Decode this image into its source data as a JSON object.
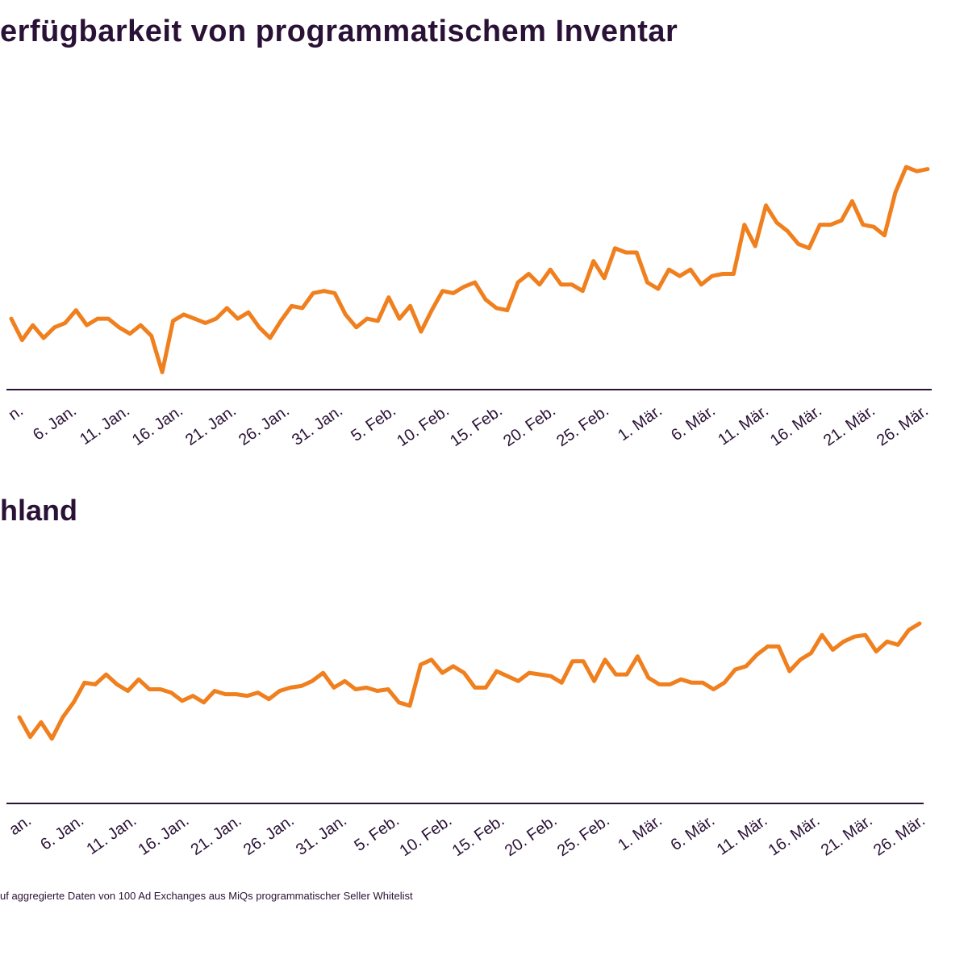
{
  "title": "erfügbarkeit von programmatischem Inventar",
  "footnote": "uf aggregierte Daten von 100 Ad Exchanges aus MiQs programmatischer Seller Whitelist",
  "colors": {
    "line": "#f07f1e",
    "axis": "#2a1236",
    "text": "#2a1236"
  },
  "chart_data": [
    {
      "type": "line",
      "title": "",
      "xlabel": "",
      "ylabel": "",
      "ylim": [
        0,
        100
      ],
      "grid": false,
      "tick_labels": [
        "n.",
        "6. Jan.",
        "11. Jan.",
        "16. Jan.",
        "21. Jan.",
        "26. Jan.",
        "31. Jan.",
        "5. Feb.",
        "10. Feb.",
        "15. Feb.",
        "20. Feb.",
        "25. Feb.",
        "1. Mär.",
        "6. Mär.",
        "11. Mär.",
        "16. Mär.",
        "21. Mär.",
        "26. Mär."
      ],
      "series": [
        {
          "values": [
            29,
            19,
            26,
            20,
            25,
            27,
            33,
            26,
            29,
            29,
            25,
            22,
            26,
            21,
            4,
            28,
            31,
            29,
            27,
            29,
            34,
            29,
            32,
            25,
            20,
            28,
            35,
            34,
            41,
            42,
            41,
            31,
            25,
            29,
            28,
            39,
            29,
            35,
            23,
            33,
            42,
            41,
            44,
            46,
            38,
            34,
            33,
            46,
            50,
            45,
            52,
            45,
            45,
            42,
            56,
            48,
            62,
            60,
            60,
            46,
            43,
            52,
            49,
            52,
            45,
            49,
            50,
            50,
            73,
            63,
            82,
            74,
            70,
            64,
            62,
            73,
            73,
            75,
            84,
            73,
            72,
            68,
            88,
            100,
            98,
            99
          ]
        }
      ]
    },
    {
      "type": "line",
      "title": "hland",
      "xlabel": "",
      "ylabel": "",
      "ylim": [
        0,
        100
      ],
      "grid": false,
      "tick_labels": [
        "an.",
        "6. Jan.",
        "11. Jan.",
        "16. Jan.",
        "21. Jan.",
        "26. Jan.",
        "31. Jan.",
        "5. Feb.",
        "10. Feb.",
        "15. Feb.",
        "20. Feb.",
        "25. Feb.",
        "1. Mär.",
        "6. Mär.",
        "11. Mär.",
        "16. Mär.",
        "21. Mär.",
        "26. Mär."
      ],
      "series": [
        {
          "values": [
            21,
            9,
            18,
            8,
            21,
            30,
            42,
            41,
            47,
            41,
            37,
            44,
            38,
            38,
            36,
            31,
            34,
            30,
            37,
            35,
            35,
            34,
            36,
            32,
            37,
            39,
            40,
            43,
            48,
            39,
            43,
            38,
            39,
            37,
            38,
            30,
            28,
            53,
            56,
            48,
            52,
            48,
            39,
            39,
            49,
            46,
            43,
            48,
            47,
            46,
            42,
            55,
            55,
            43,
            56,
            47,
            47,
            58,
            45,
            41,
            41,
            44,
            42,
            42,
            38,
            42,
            50,
            52,
            59,
            64,
            64,
            49,
            56,
            60,
            71,
            62,
            67,
            70,
            71,
            61,
            67,
            65,
            74,
            78
          ]
        }
      ]
    }
  ]
}
